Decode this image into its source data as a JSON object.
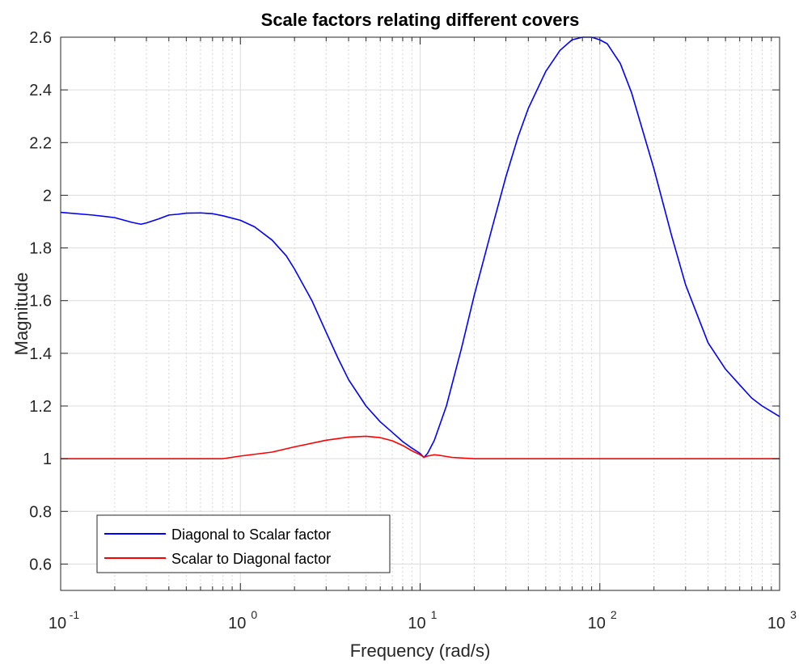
{
  "chart_data": {
    "type": "line",
    "title": "Scale factors relating different covers",
    "xlabel": "Frequency (rad/s)",
    "ylabel": "Magnitude",
    "xscale": "log",
    "xlim": [
      0.1,
      1000
    ],
    "ylim": [
      0.5,
      2.6
    ],
    "grid": true,
    "minor_grid": true,
    "legend_position": "bottom-left",
    "x_ticks": [
      {
        "value": 0.1,
        "base": "10",
        "exp": "-1"
      },
      {
        "value": 1,
        "base": "10",
        "exp": "0"
      },
      {
        "value": 10,
        "base": "10",
        "exp": "1"
      },
      {
        "value": 100,
        "base": "10",
        "exp": "2"
      },
      {
        "value": 1000,
        "base": "10",
        "exp": "3"
      }
    ],
    "y_ticks": [
      {
        "value": 0.6,
        "label": "0.6"
      },
      {
        "value": 0.8,
        "label": "0.8"
      },
      {
        "value": 1.0,
        "label": "1"
      },
      {
        "value": 1.2,
        "label": "1.2"
      },
      {
        "value": 1.4,
        "label": "1.4"
      },
      {
        "value": 1.6,
        "label": "1.6"
      },
      {
        "value": 1.8,
        "label": "1.8"
      },
      {
        "value": 2.0,
        "label": "2"
      },
      {
        "value": 2.2,
        "label": "2.2"
      },
      {
        "value": 2.4,
        "label": "2.4"
      },
      {
        "value": 2.6,
        "label": "2.6"
      }
    ],
    "series": [
      {
        "name": "Diagonal to Scalar factor",
        "color": "#0000ff",
        "points": [
          [
            0.1,
            1.935
          ],
          [
            0.15,
            1.925
          ],
          [
            0.2,
            1.915
          ],
          [
            0.25,
            1.897
          ],
          [
            0.28,
            1.89
          ],
          [
            0.3,
            1.895
          ],
          [
            0.35,
            1.91
          ],
          [
            0.4,
            1.925
          ],
          [
            0.45,
            1.928
          ],
          [
            0.5,
            1.932
          ],
          [
            0.6,
            1.933
          ],
          [
            0.7,
            1.93
          ],
          [
            0.8,
            1.922
          ],
          [
            1.0,
            1.905
          ],
          [
            1.2,
            1.88
          ],
          [
            1.5,
            1.83
          ],
          [
            1.8,
            1.77
          ],
          [
            2.0,
            1.72
          ],
          [
            2.5,
            1.6
          ],
          [
            3.0,
            1.48
          ],
          [
            3.5,
            1.38
          ],
          [
            4.0,
            1.3
          ],
          [
            5.0,
            1.2
          ],
          [
            6.0,
            1.14
          ],
          [
            7.0,
            1.1
          ],
          [
            8.0,
            1.065
          ],
          [
            9.0,
            1.04
          ],
          [
            10.0,
            1.02
          ],
          [
            10.5,
            1.005
          ],
          [
            11.0,
            1.02
          ],
          [
            12.0,
            1.07
          ],
          [
            14.0,
            1.2
          ],
          [
            17.0,
            1.42
          ],
          [
            20.0,
            1.62
          ],
          [
            25.0,
            1.87
          ],
          [
            30.0,
            2.07
          ],
          [
            35.0,
            2.22
          ],
          [
            40.0,
            2.33
          ],
          [
            50.0,
            2.47
          ],
          [
            60.0,
            2.55
          ],
          [
            70.0,
            2.59
          ],
          [
            80.0,
            2.6
          ],
          [
            90.0,
            2.6
          ],
          [
            100.0,
            2.59
          ],
          [
            110.0,
            2.575
          ],
          [
            130.0,
            2.5
          ],
          [
            150.0,
            2.39
          ],
          [
            200.0,
            2.1
          ],
          [
            250.0,
            1.85
          ],
          [
            300.0,
            1.66
          ],
          [
            400.0,
            1.44
          ],
          [
            500.0,
            1.34
          ],
          [
            600.0,
            1.28
          ],
          [
            700.0,
            1.23
          ],
          [
            800.0,
            1.2
          ],
          [
            1000.0,
            1.16
          ]
        ]
      },
      {
        "name": "Scalar to Diagonal factor",
        "color": "#ff0000",
        "points": [
          [
            0.1,
            1.0
          ],
          [
            0.5,
            1.0
          ],
          [
            0.8,
            1.0
          ],
          [
            1.0,
            1.01
          ],
          [
            1.5,
            1.025
          ],
          [
            2.0,
            1.045
          ],
          [
            3.0,
            1.07
          ],
          [
            4.0,
            1.082
          ],
          [
            5.0,
            1.085
          ],
          [
            6.0,
            1.08
          ],
          [
            7.0,
            1.068
          ],
          [
            8.0,
            1.05
          ],
          [
            9.0,
            1.03
          ],
          [
            10.0,
            1.015
          ],
          [
            10.5,
            1.005
          ],
          [
            11.0,
            1.01
          ],
          [
            12.0,
            1.015
          ],
          [
            13.0,
            1.012
          ],
          [
            15.0,
            1.005
          ],
          [
            20.0,
            1.0
          ],
          [
            100.0,
            1.0
          ],
          [
            1000.0,
            1.0
          ]
        ]
      }
    ]
  }
}
